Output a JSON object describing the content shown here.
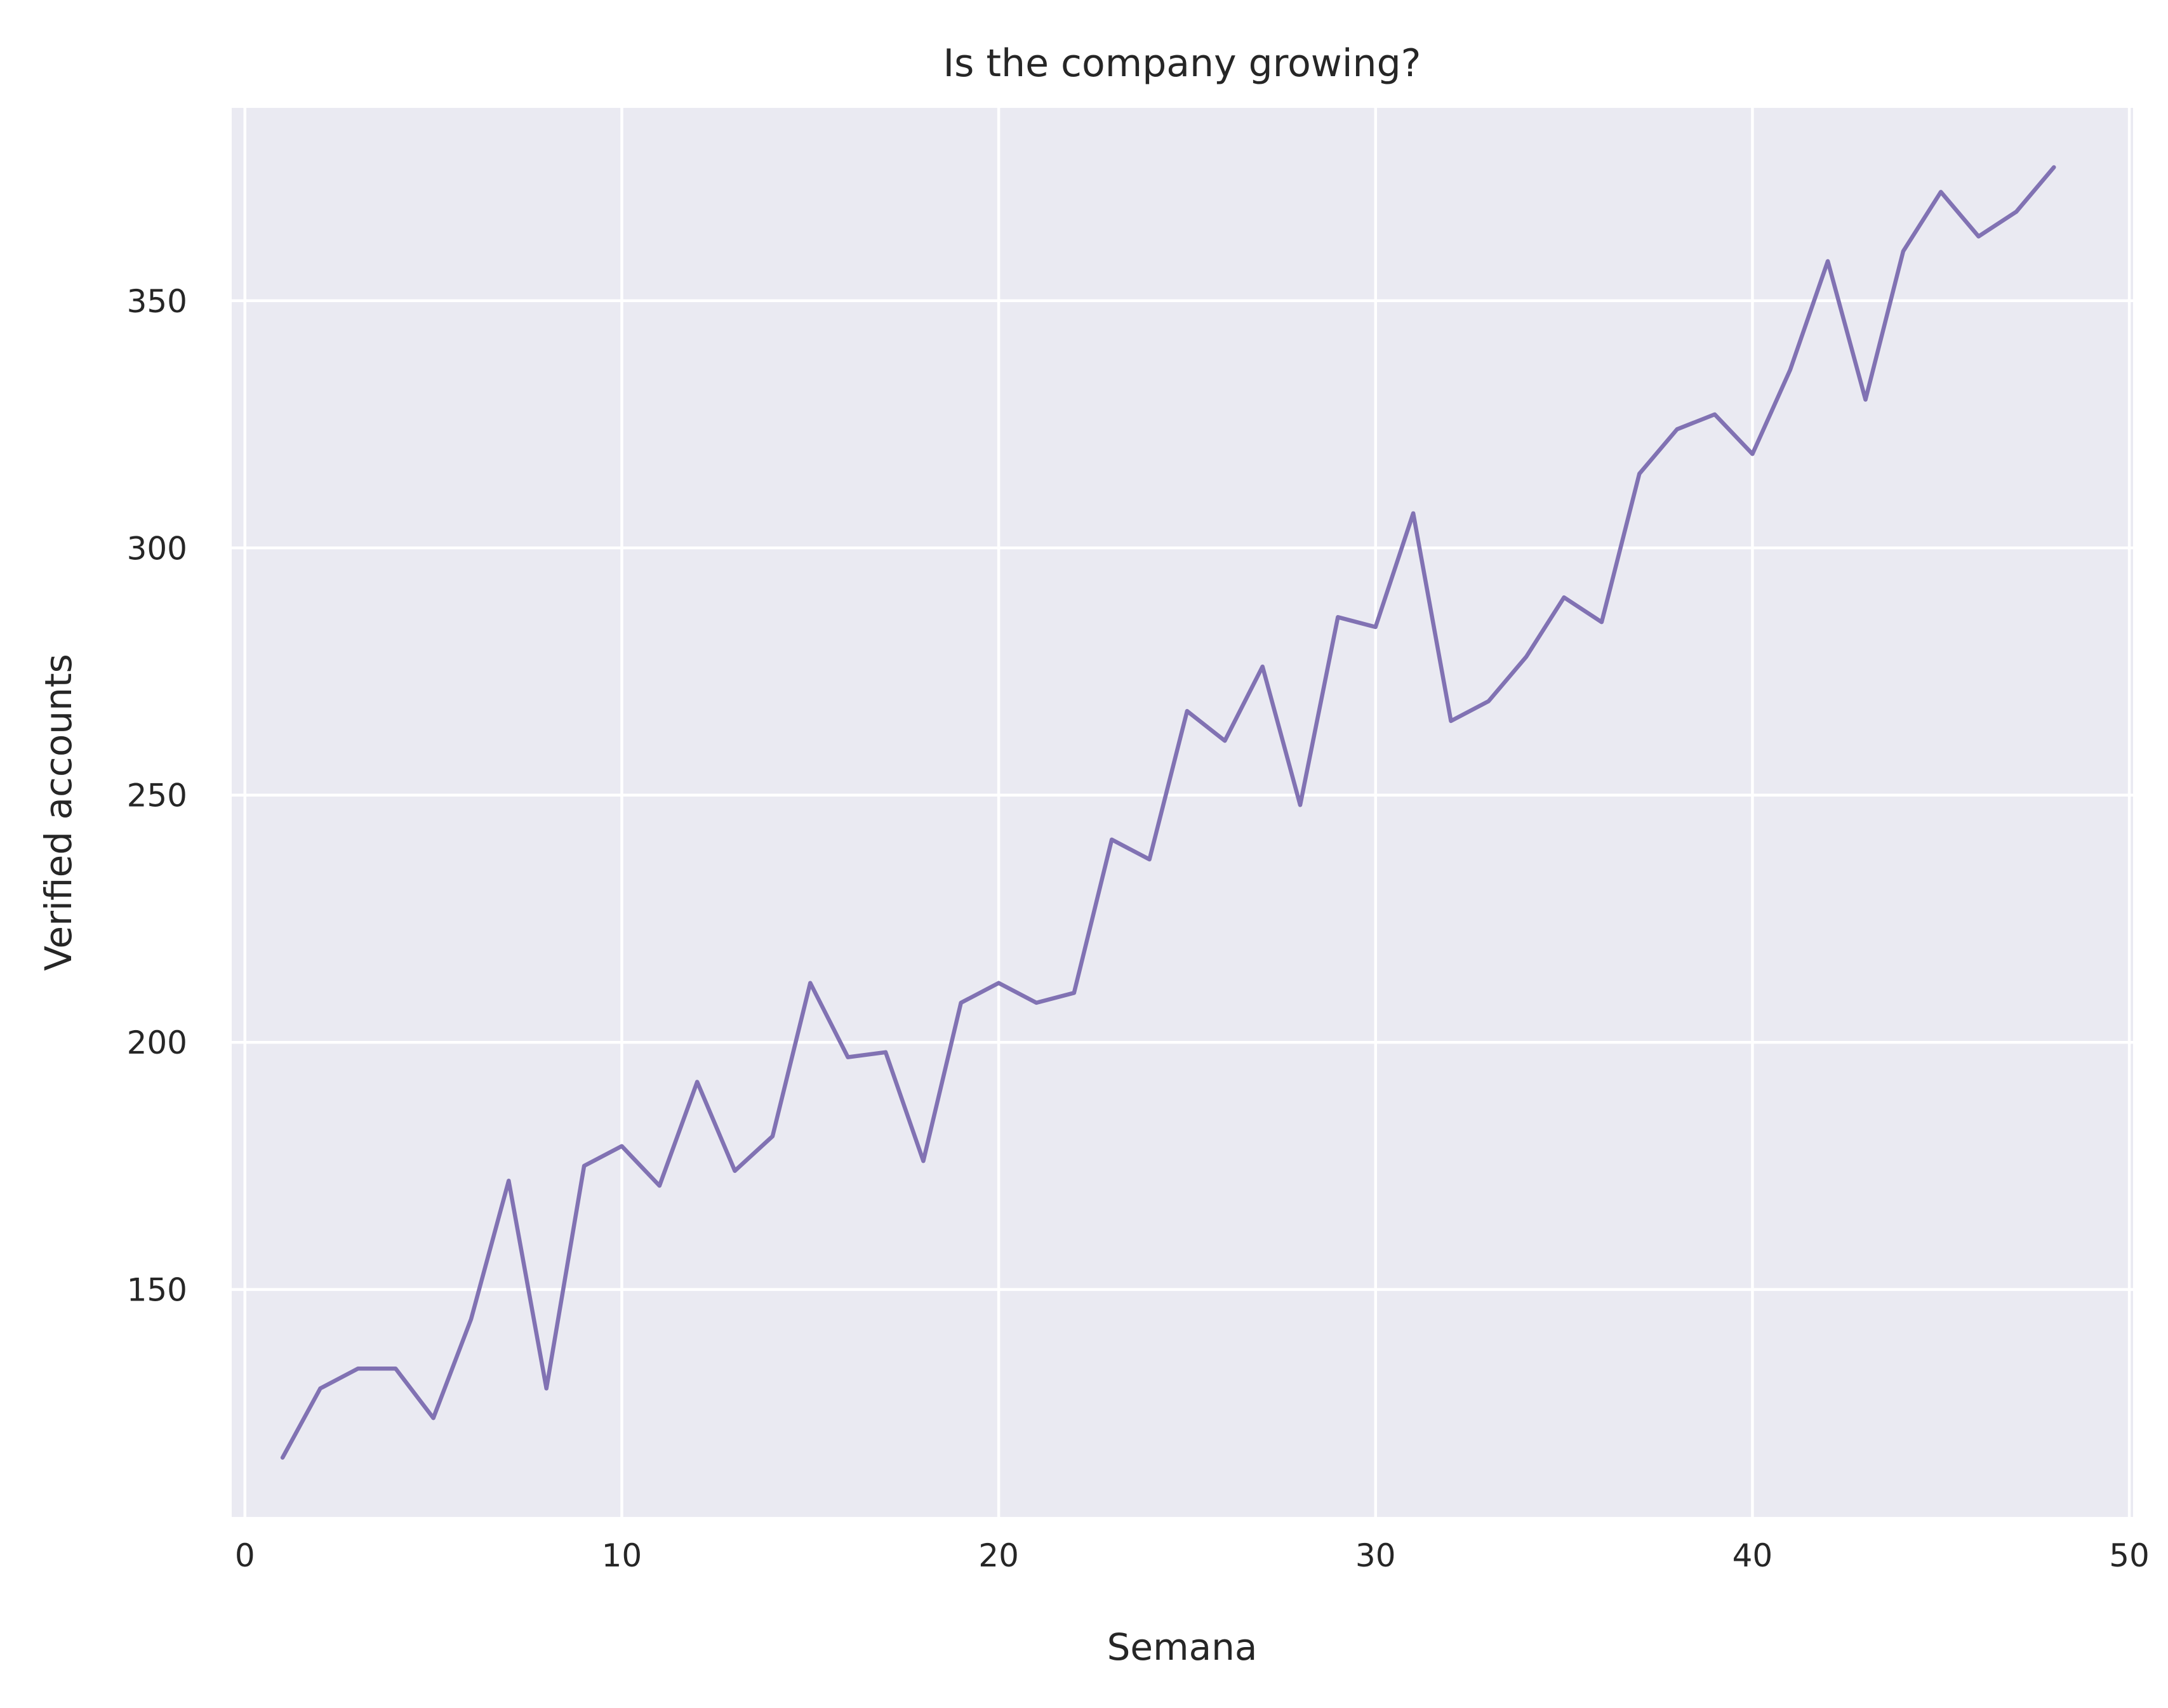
{
  "chart_data": {
    "type": "line",
    "title": "Is the company growing?",
    "xlabel": "Semana",
    "ylabel": "Verified accounts",
    "xlim": [
      -0.35,
      50.1
    ],
    "ylim": [
      104,
      389
    ],
    "xticks": [
      0,
      10,
      20,
      30,
      40,
      50
    ],
    "yticks": [
      150,
      200,
      250,
      300,
      350
    ],
    "grid": true,
    "legend": "none",
    "colors": {
      "background": "#EAEAF2",
      "grid": "#FFFFFF",
      "line": "#8172B3"
    },
    "x": [
      1,
      2,
      3,
      4,
      5,
      6,
      7,
      8,
      9,
      10,
      11,
      12,
      13,
      14,
      15,
      16,
      17,
      18,
      19,
      20,
      21,
      22,
      23,
      24,
      25,
      26,
      27,
      28,
      29,
      30,
      31,
      32,
      33,
      34,
      35,
      36,
      37,
      38,
      39,
      40,
      41,
      42,
      43,
      44,
      45,
      46,
      47,
      48
    ],
    "series": [
      {
        "values": [
          116,
          130,
          134,
          134,
          124,
          144,
          172,
          130,
          175,
          179,
          171,
          192,
          174,
          181,
          212,
          197,
          198,
          176,
          208,
          212,
          208,
          210,
          241,
          237,
          267,
          261,
          276,
          248,
          286,
          284,
          307,
          265,
          269,
          278,
          290,
          285,
          315,
          324,
          327,
          319,
          336,
          358,
          330,
          360,
          372,
          363,
          368,
          377
        ]
      }
    ]
  }
}
